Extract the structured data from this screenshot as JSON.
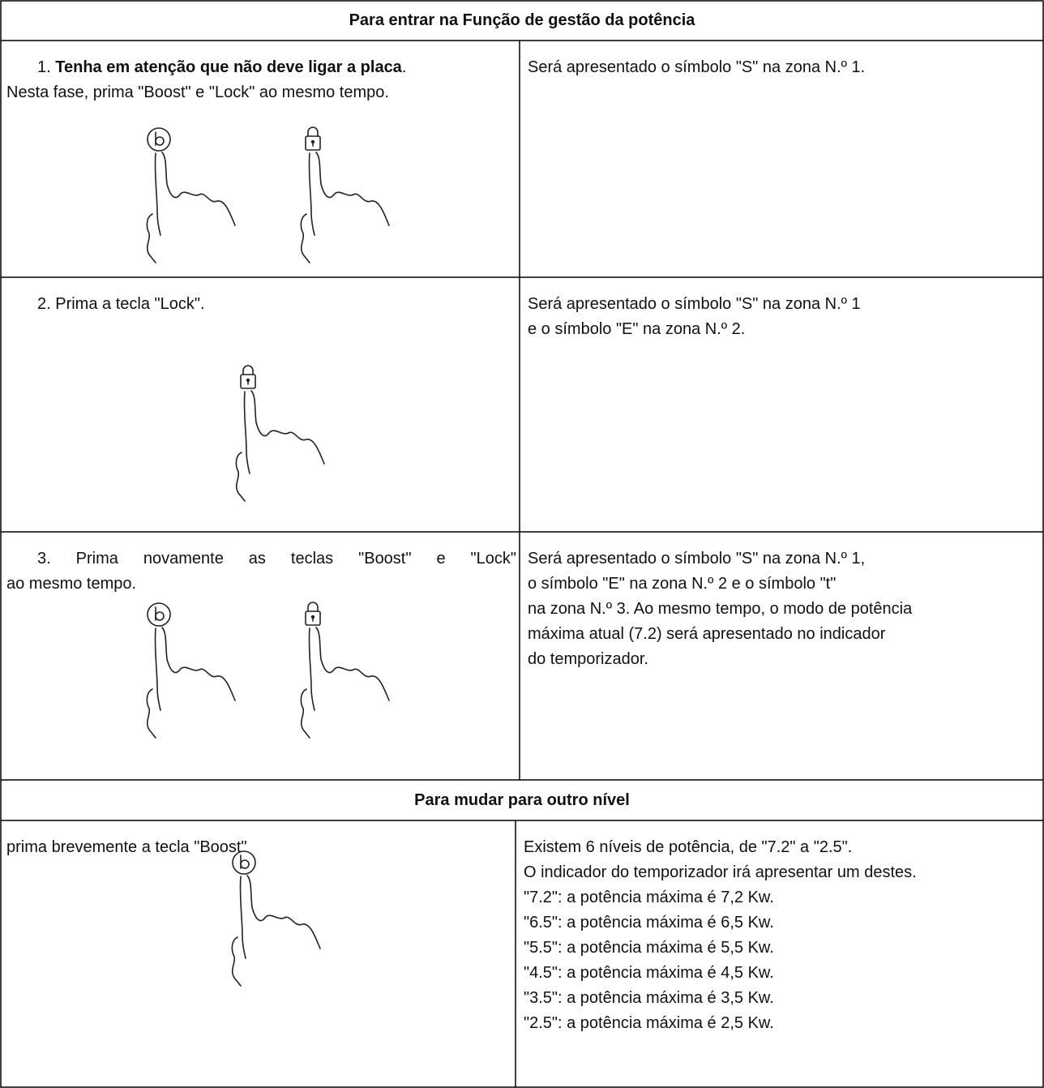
{
  "sections": [
    {
      "heading": "Para entrar na Função de gestão da potência",
      "rows": [
        {
          "instruction": [
            [
              {
                "text": "1. "
              },
              {
                "text": "Tenha em atenção que não deve ligar a placa",
                "bold": true
              },
              {
                "text": "."
              }
            ],
            [
              {
                "text": "Nesta fase, prima \"Boost\" e \"Lock\" ao mesmo tempo."
              }
            ]
          ],
          "result": [
            "Será apresentado o símbolo \"S\" na zona N.º 1."
          ]
        },
        {
          "instruction": [
            [
              {
                "text": "2. Prima a tecla \"Lock\"."
              }
            ]
          ],
          "result": [
            "Será apresentado o símbolo \"S\" na zona N.º 1",
            "e o símbolo \"E\" na zona N.º 2."
          ]
        },
        {
          "instruction": [
            [
              {
                "text": "3. Prima novamente as teclas \"Boost\" e \"Lock\""
              }
            ],
            [
              {
                "text": "ao mesmo tempo."
              }
            ]
          ],
          "result": [
            "Será apresentado o símbolo \"S\" na zona N.º 1,",
            "o símbolo \"E\" na zona N.º 2 e o símbolo \"t\"",
            "na zona N.º 3. Ao mesmo tempo, o modo de potência",
            "máxima atual (7.2) será apresentado no indicador",
            "do temporizador."
          ]
        }
      ]
    },
    {
      "heading": "Para mudar para outro nível",
      "rows": [
        {
          "instruction": [
            [
              {
                "text": "prima brevemente a tecla \"Boost\""
              }
            ]
          ],
          "result": [
            "Existem 6 níveis de potência, de \"7.2\" a \"2.5\".",
            "O indicador do temporizador irá apresentar um destes.",
            "\"7.2\": a potência máxima é 7,2 Kw.",
            "\"6.5\": a potência máxima é 6,5 Kw.",
            "\"5.5\": a potência máxima é 5,5 Kw.",
            "\"4.5\": a potência máxima é 4,5 Kw.",
            "\"3.5\": a potência máxima é 3,5 Kw.",
            "\"2.5\": a potência máxima é 2,5 Kw."
          ]
        }
      ]
    }
  ]
}
